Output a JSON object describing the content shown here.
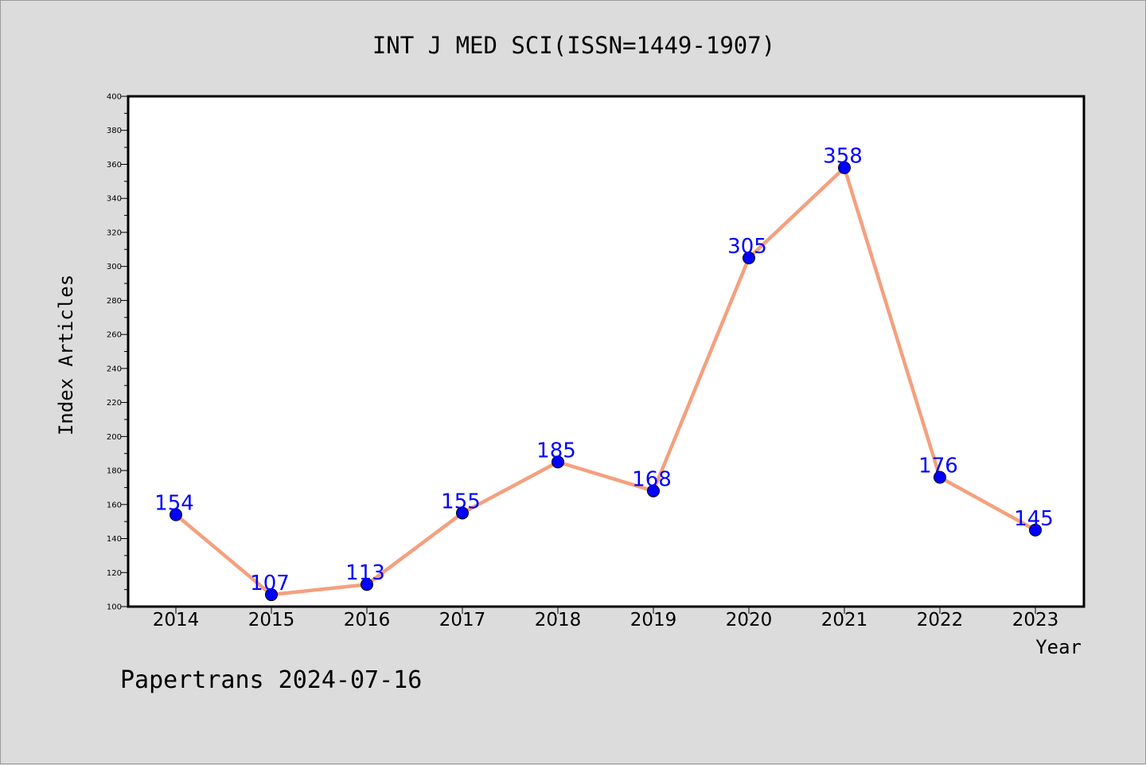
{
  "footer": "Papertrans 2024-07-16",
  "chart_data": {
    "type": "line",
    "title": "INT J MED SCI(ISSN=1449-1907)",
    "xlabel": "Year",
    "ylabel": "Index Articles",
    "categories": [
      "2014",
      "2015",
      "2016",
      "2017",
      "2018",
      "2019",
      "2020",
      "2021",
      "2022",
      "2023"
    ],
    "series": [
      {
        "values": [
          154,
          107,
          113,
          155,
          185,
          168,
          305,
          358,
          176,
          145
        ]
      }
    ],
    "data_labels": [
      "154",
      "107",
      "113",
      "155",
      "185",
      "168",
      "305",
      "358",
      "176",
      "145"
    ],
    "ylim": [
      100,
      400
    ],
    "yticks": [
      100,
      120,
      140,
      160,
      180,
      200,
      220,
      240,
      260,
      280,
      300,
      320,
      340,
      360,
      380,
      400
    ],
    "grid": false,
    "line_color": "#f4a07e",
    "marker_color": "#0000ff",
    "label_color": "#0000ff"
  }
}
